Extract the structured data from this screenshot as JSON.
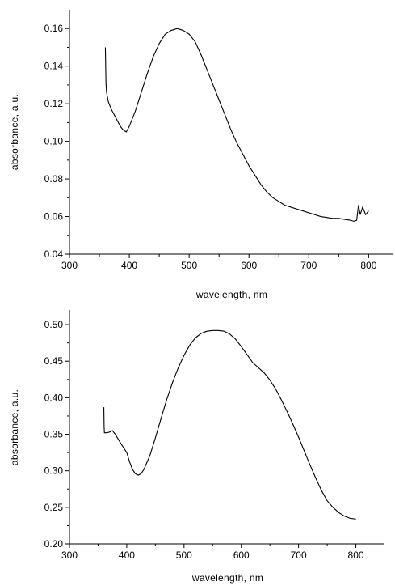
{
  "chart_data": [
    {
      "type": "line",
      "title": "",
      "xlabel": "wavelength, nm",
      "ylabel": "absorbance, a.u.",
      "xlim": [
        300,
        840
      ],
      "ylim": [
        0.04,
        0.17
      ],
      "xticks": [
        300,
        400,
        500,
        600,
        700,
        800
      ],
      "xtick_labels": [
        "300",
        "400",
        "500",
        "600",
        "700",
        "800"
      ],
      "yticks": [
        0.04,
        0.06,
        0.08,
        0.1,
        0.12,
        0.14,
        0.16
      ],
      "ytick_labels": [
        "0.04",
        "0.06",
        "0.08",
        "0.10",
        "0.12",
        "0.14",
        "0.16"
      ],
      "grid": false,
      "series": [
        {
          "x": [
            360,
            361,
            362,
            365,
            370,
            375,
            380,
            385,
            390,
            395,
            400,
            410,
            420,
            430,
            440,
            450,
            460,
            470,
            480,
            490,
            500,
            510,
            520,
            530,
            540,
            550,
            560,
            570,
            580,
            590,
            600,
            610,
            620,
            630,
            640,
            650,
            660,
            670,
            680,
            690,
            700,
            710,
            720,
            730,
            740,
            750,
            760,
            770,
            775,
            780,
            783,
            786,
            790,
            795,
            800
          ],
          "y": [
            0.15,
            0.131,
            0.126,
            0.121,
            0.117,
            0.114,
            0.111,
            0.108,
            0.106,
            0.105,
            0.108,
            0.116,
            0.126,
            0.136,
            0.145,
            0.152,
            0.157,
            0.159,
            0.16,
            0.159,
            0.157,
            0.153,
            0.146,
            0.138,
            0.13,
            0.122,
            0.114,
            0.106,
            0.099,
            0.093,
            0.087,
            0.082,
            0.077,
            0.073,
            0.07,
            0.068,
            0.066,
            0.065,
            0.064,
            0.063,
            0.062,
            0.061,
            0.06,
            0.0595,
            0.059,
            0.059,
            0.0585,
            0.058,
            0.0575,
            0.058,
            0.066,
            0.061,
            0.065,
            0.061,
            0.063
          ]
        }
      ]
    },
    {
      "type": "line",
      "title": "",
      "xlabel": "wavelength, nm",
      "ylabel": "absorbance, a.u.",
      "xlim": [
        300,
        850
      ],
      "ylim": [
        0.2,
        0.52
      ],
      "xticks": [
        300,
        400,
        500,
        600,
        700,
        800
      ],
      "xtick_labels": [
        "300",
        "400",
        "500",
        "600",
        "700",
        "800"
      ],
      "yticks": [
        0.2,
        0.25,
        0.3,
        0.35,
        0.4,
        0.45,
        0.5
      ],
      "ytick_labels": [
        "0.20",
        "0.25",
        "0.30",
        "0.35",
        "0.40",
        "0.45",
        "0.50"
      ],
      "grid": false,
      "series": [
        {
          "x": [
            360,
            360.5,
            361,
            365,
            370,
            375,
            380,
            390,
            400,
            405,
            410,
            415,
            420,
            425,
            430,
            440,
            450,
            460,
            470,
            480,
            490,
            500,
            510,
            520,
            530,
            540,
            550,
            560,
            570,
            580,
            590,
            600,
            610,
            620,
            630,
            640,
            650,
            660,
            670,
            680,
            690,
            700,
            710,
            720,
            730,
            740,
            750,
            760,
            770,
            780,
            790,
            800
          ],
          "y": [
            0.387,
            0.36,
            0.352,
            0.352,
            0.353,
            0.355,
            0.35,
            0.337,
            0.325,
            0.312,
            0.302,
            0.296,
            0.294,
            0.296,
            0.302,
            0.32,
            0.345,
            0.372,
            0.398,
            0.421,
            0.441,
            0.458,
            0.472,
            0.482,
            0.488,
            0.491,
            0.492,
            0.492,
            0.491,
            0.487,
            0.48,
            0.47,
            0.459,
            0.448,
            0.441,
            0.434,
            0.424,
            0.412,
            0.397,
            0.381,
            0.364,
            0.346,
            0.327,
            0.308,
            0.29,
            0.273,
            0.259,
            0.25,
            0.243,
            0.238,
            0.235,
            0.234
          ]
        }
      ]
    }
  ]
}
